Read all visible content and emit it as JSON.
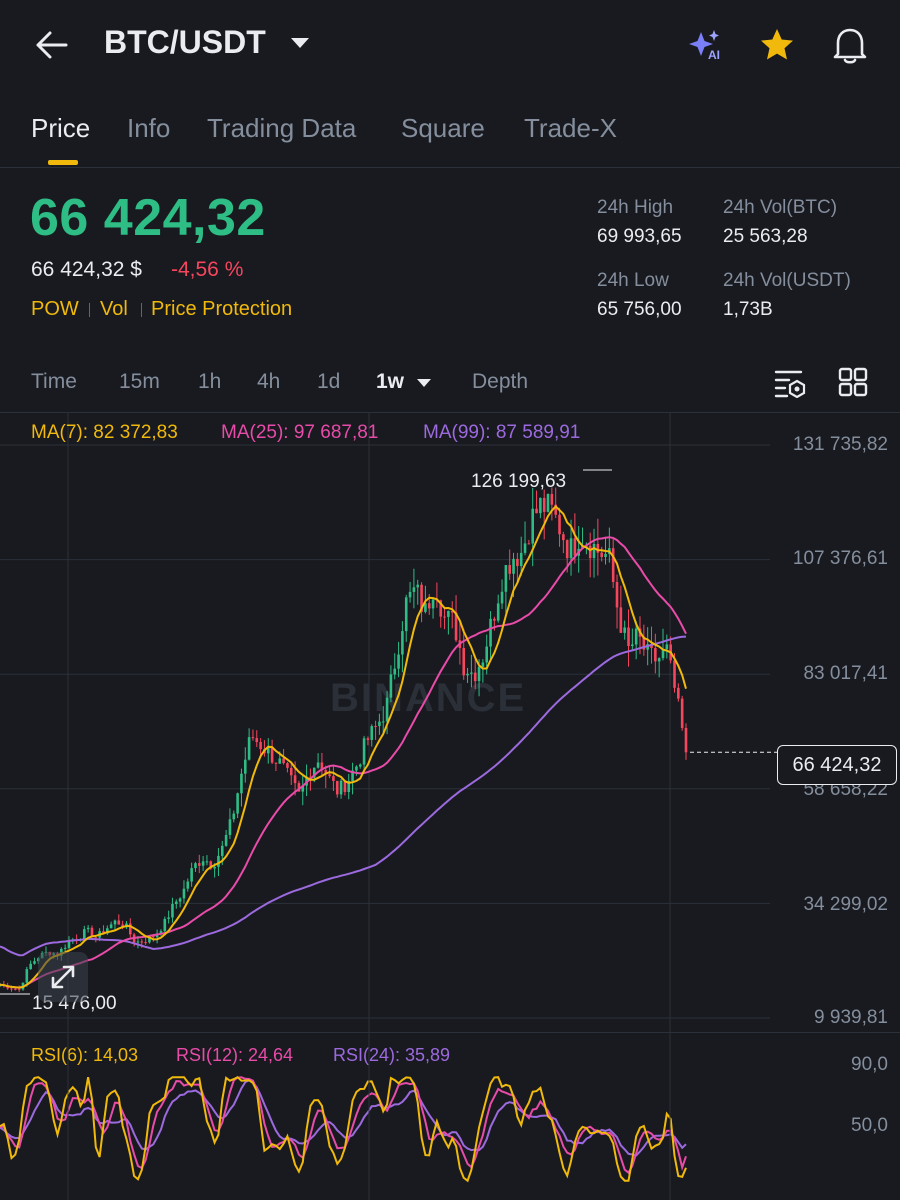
{
  "header": {
    "title": "BTC/USDT",
    "ai_badge": "AI",
    "icons": [
      "back-arrow-icon",
      "caret-down-icon",
      "ai-sparkle-icon",
      "star-icon",
      "bell-icon"
    ]
  },
  "tabs": [
    {
      "label": "Price",
      "active": true
    },
    {
      "label": "Info",
      "active": false
    },
    {
      "label": "Trading Data",
      "active": false
    },
    {
      "label": "Square",
      "active": false
    },
    {
      "label": "Trade-X",
      "active": false
    }
  ],
  "price": {
    "last": "66 424,32",
    "fiat": "66 424,32 $",
    "change": "-4,56 %",
    "tags": [
      "POW",
      "Vol",
      "Price Protection"
    ]
  },
  "stats": {
    "high_label": "24h High",
    "high": "69 993,65",
    "volbtc_label": "24h Vol(BTC)",
    "volbtc": "25 563,28",
    "low_label": "24h Low",
    "low": "65 756,00",
    "volusdt_label": "24h Vol(USDT)",
    "volusdt": "1,73B"
  },
  "intervals": {
    "items": [
      "Time",
      "15m",
      "1h",
      "4h",
      "1d",
      "1w",
      "Depth"
    ],
    "active": "1w"
  },
  "indicators": {
    "ma7": "MA(7): 82 372,83",
    "ma25": "MA(25): 97 687,81",
    "ma99": "MA(99): 87 589,91",
    "rsi6": "RSI(6): 14,03",
    "rsi12": "RSI(12): 24,64",
    "rsi24": "RSI(24): 35,89"
  },
  "chart_labels": {
    "y_ticks": [
      "131 735,82",
      "107 376,61",
      "83 017,41",
      "58 658,22",
      "34 299,02",
      "9 939,81"
    ],
    "current_price": "66 424,32",
    "high_marker": "126 199,63",
    "low_marker": "15 476,00",
    "rsi_ticks": [
      "90,0",
      "50,0"
    ],
    "watermark": "BINANCE"
  },
  "colors": {
    "bg": "#181a20",
    "up": "#2ebd85",
    "down": "#f6465d",
    "accent": "#f0b90b",
    "ma7": "#f0b90b",
    "ma25": "#e84ba8",
    "ma99": "#9c6ade"
  },
  "chart_data": {
    "type": "candlestick",
    "title": "",
    "interval": "1w",
    "ylim": [
      9939.81,
      131735.82
    ],
    "y_ticks": [
      131735.82,
      107376.61,
      83017.41,
      58658.22,
      34299.02,
      9939.81
    ],
    "current_price": 66424.32,
    "high_marker": 126199.63,
    "low_marker": 15476.0,
    "close_path": [
      17000,
      16500,
      16000,
      21000,
      23000,
      24000,
      23500,
      26000,
      27000,
      28500,
      27000,
      29000,
      30500,
      29500,
      26000,
      26500,
      27500,
      30000,
      34000,
      37000,
      42000,
      44000,
      42500,
      46000,
      52000,
      62000,
      70000,
      68000,
      66000,
      64000,
      60500,
      57000,
      62500,
      65000,
      61000,
      58000,
      60500,
      64000,
      69000,
      72000,
      76000,
      87000,
      98000,
      101000,
      96000,
      103000,
      95000,
      94000,
      85000,
      83000,
      87000,
      95000,
      104000,
      108000,
      109000,
      116000,
      119000,
      118000,
      114000,
      109000,
      113000,
      111000,
      109000,
      108000,
      96000,
      88000,
      91000,
      87000,
      86000,
      88000,
      78000,
      66424
    ],
    "series": [
      {
        "name": "MA(7)",
        "last": 82372.83
      },
      {
        "name": "MA(25)",
        "last": 97687.81
      },
      {
        "name": "MA(99)",
        "last": 87589.91
      }
    ],
    "rsi": {
      "ylim": [
        0,
        100
      ],
      "ticks": [
        90,
        50
      ],
      "rsi6": 14.03,
      "rsi12": 24.64,
      "rsi24": 35.89
    }
  }
}
